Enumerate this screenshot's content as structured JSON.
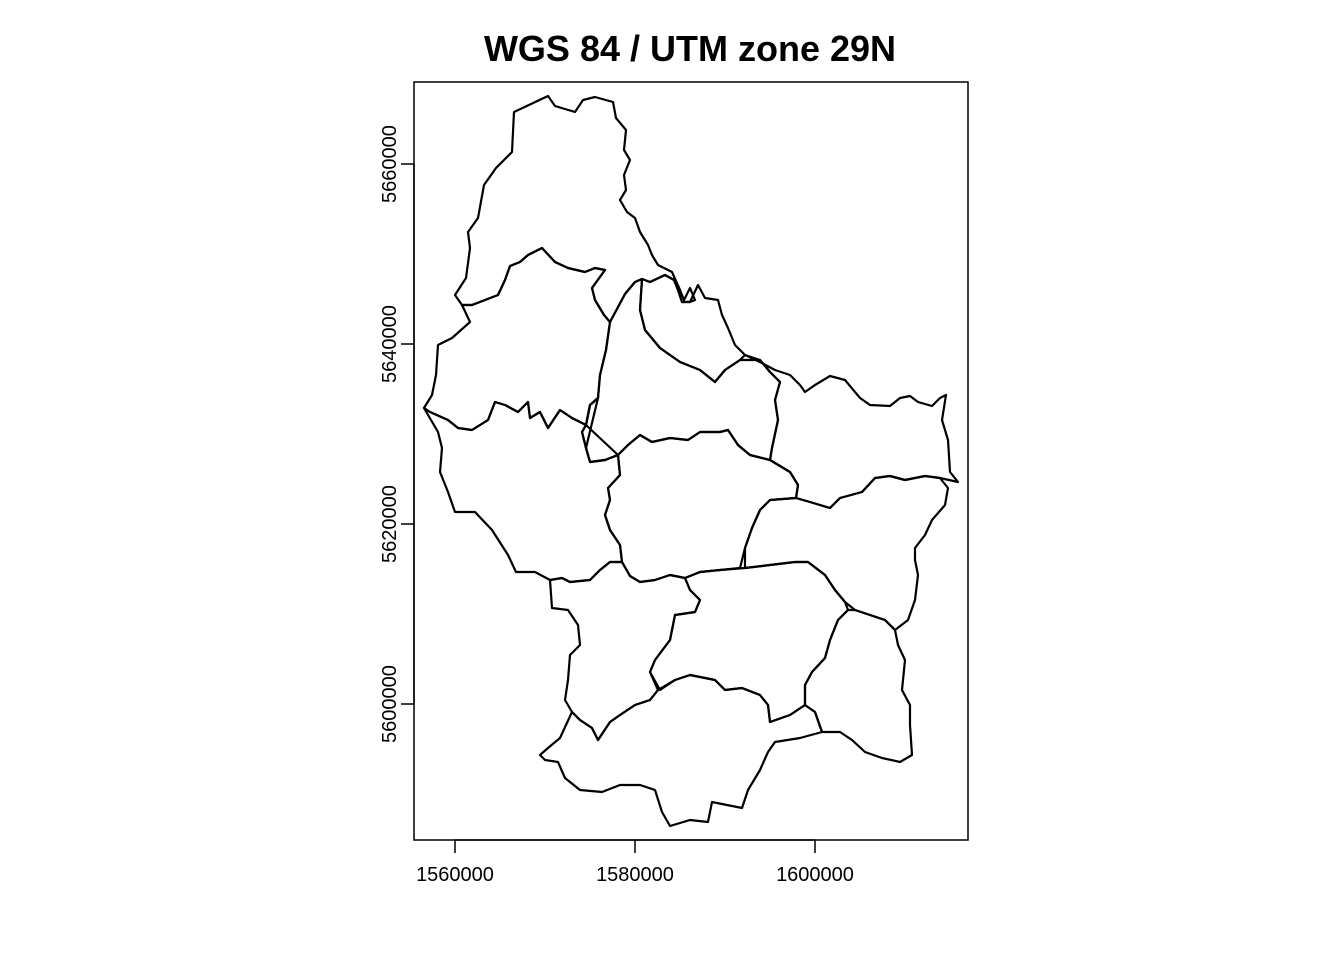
{
  "title": "WGS 84 / UTM zone 29N",
  "axes": {
    "x_ticks": [
      "1560000",
      "1580000",
      "1600000"
    ],
    "y_ticks": [
      "5600000",
      "5620000",
      "5640000",
      "5660000"
    ]
  },
  "colors": {
    "line": "#000000",
    "background": "#ffffff"
  }
}
